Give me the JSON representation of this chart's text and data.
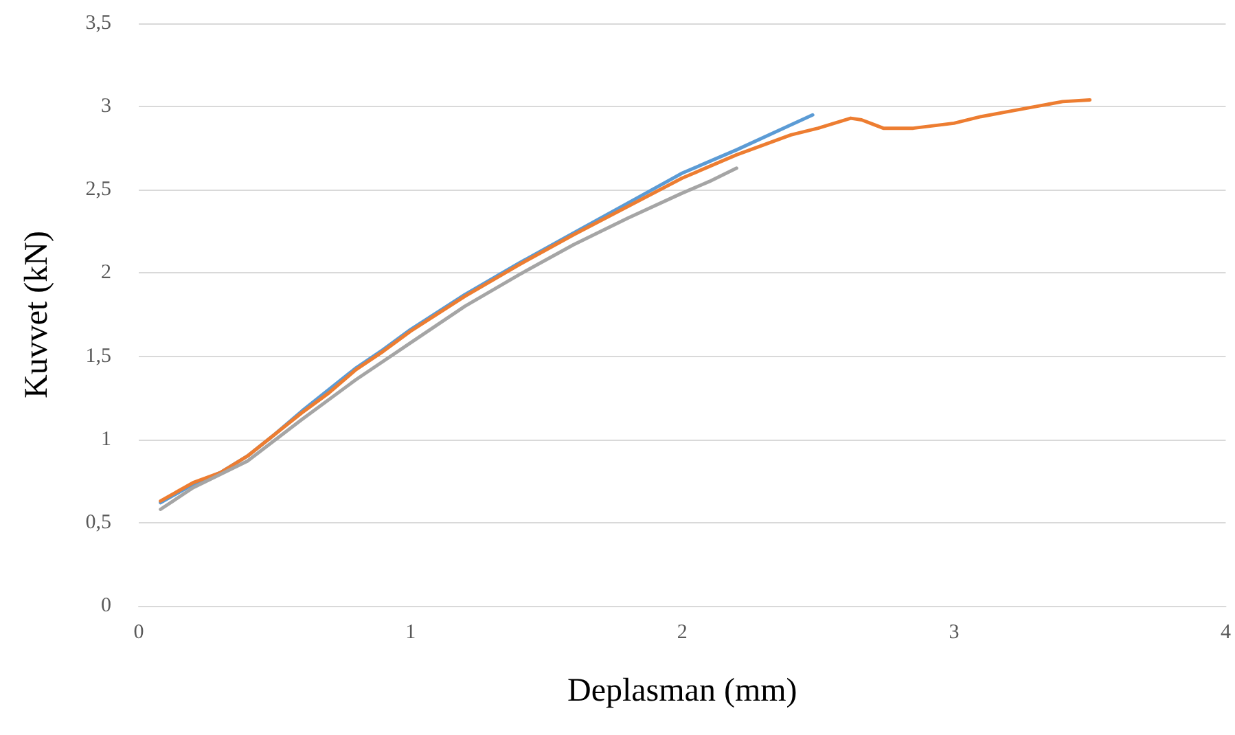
{
  "chart_data": {
    "type": "line",
    "xlabel": "Deplasman (mm)",
    "ylabel": "Kuvvet (kN)",
    "xlim": [
      0,
      4
    ],
    "xticks": [
      0,
      1,
      2,
      3,
      4
    ],
    "ylim": [
      0,
      3.5
    ],
    "yticks": [
      0,
      {
        "value": 0.5,
        "label": "0,5"
      },
      1,
      {
        "value": 1.5,
        "label": "1,5"
      },
      2,
      {
        "value": 2.5,
        "label": "2,5"
      },
      3,
      {
        "value": 3.5,
        "label": "3,5"
      }
    ],
    "grid": "y",
    "marker": "none",
    "line_style": "solid",
    "series": [
      {
        "color": "#5b9bd5",
        "x": [
          0.08,
          0.2,
          0.3,
          0.4,
          0.5,
          0.6,
          0.7,
          0.8,
          0.9,
          1.0,
          1.2,
          1.4,
          1.6,
          1.8,
          2.0,
          2.2,
          2.4,
          2.48
        ],
        "values": [
          0.62,
          0.73,
          0.8,
          0.9,
          1.03,
          1.17,
          1.3,
          1.43,
          1.54,
          1.66,
          1.87,
          2.06,
          2.24,
          2.42,
          2.6,
          2.74,
          2.89,
          2.95
        ]
      },
      {
        "color": "#ed7d31",
        "x": [
          0.08,
          0.2,
          0.3,
          0.4,
          0.5,
          0.6,
          0.7,
          0.8,
          0.9,
          1.0,
          1.2,
          1.4,
          1.6,
          1.8,
          2.0,
          2.2,
          2.4,
          2.5,
          2.62,
          2.66,
          2.74,
          2.85,
          3.0,
          3.1,
          3.2,
          3.3,
          3.4,
          3.5
        ],
        "values": [
          0.63,
          0.74,
          0.8,
          0.9,
          1.03,
          1.16,
          1.28,
          1.42,
          1.53,
          1.65,
          1.86,
          2.05,
          2.23,
          2.4,
          2.57,
          2.71,
          2.83,
          2.87,
          2.93,
          2.92,
          2.87,
          2.87,
          2.9,
          2.94,
          2.97,
          3.0,
          3.03,
          3.04
        ]
      },
      {
        "color": "#a5a5a5",
        "x": [
          0.08,
          0.2,
          0.4,
          0.6,
          0.8,
          1.0,
          1.2,
          1.4,
          1.6,
          1.8,
          2.0,
          2.1,
          2.2
        ],
        "values": [
          0.58,
          0.71,
          0.87,
          1.12,
          1.36,
          1.58,
          1.8,
          1.99,
          2.17,
          2.33,
          2.48,
          2.55,
          2.63
        ]
      }
    ]
  }
}
